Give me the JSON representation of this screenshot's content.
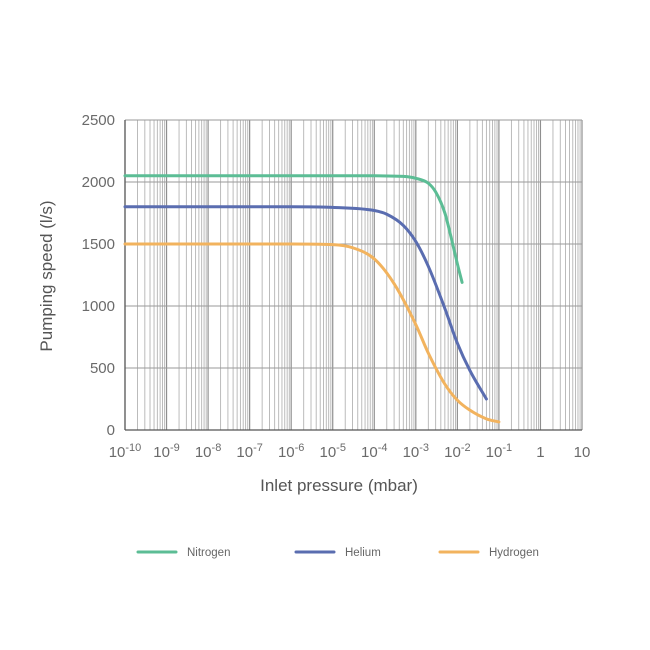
{
  "chart_data": {
    "type": "line",
    "title": "",
    "xlabel": "Inlet pressure (mbar)",
    "ylabel": "Pumping speed (l/s)",
    "x_scale": "log",
    "xlim": [
      1e-10,
      10
    ],
    "ylim": [
      0,
      2500
    ],
    "grid": true,
    "legend_position": "bottom",
    "x_ticks": [
      {
        "base": "10",
        "exp": "-10"
      },
      {
        "base": "10",
        "exp": "-9"
      },
      {
        "base": "10",
        "exp": "-8"
      },
      {
        "base": "10",
        "exp": "-7"
      },
      {
        "base": "10",
        "exp": "-6"
      },
      {
        "base": "10",
        "exp": "-5"
      },
      {
        "base": "10",
        "exp": "-4"
      },
      {
        "base": "10",
        "exp": "-3"
      },
      {
        "base": "10",
        "exp": "-2"
      },
      {
        "base": "10",
        "exp": "-1"
      },
      {
        "base": "1",
        "exp": ""
      },
      {
        "base": "10",
        "exp": ""
      }
    ],
    "y_ticks": [
      "0",
      "500",
      "1000",
      "1500",
      "2000",
      "2500"
    ],
    "series": [
      {
        "name": "Nitrogen",
        "color": "#5cbd95",
        "x": [
          1e-10,
          1e-08,
          1e-06,
          0.0001,
          0.0005,
          0.001,
          0.002,
          0.003,
          0.005,
          0.007,
          0.01,
          0.013
        ],
        "y": [
          2050,
          2050,
          2050,
          2050,
          2045,
          2030,
          1990,
          1920,
          1750,
          1560,
          1340,
          1190
        ]
      },
      {
        "name": "Helium",
        "color": "#5a6db0",
        "x": [
          1e-10,
          1e-08,
          1e-06,
          1e-05,
          0.0001,
          0.0002,
          0.0005,
          0.001,
          0.002,
          0.005,
          0.01,
          0.02,
          0.05
        ],
        "y": [
          1800,
          1800,
          1800,
          1795,
          1770,
          1740,
          1650,
          1520,
          1320,
          980,
          700,
          480,
          250
        ]
      },
      {
        "name": "Hydrogen",
        "color": "#f2b35e",
        "x": [
          1e-10,
          1e-08,
          1e-06,
          1e-05,
          3e-05,
          0.0001,
          0.0003,
          0.001,
          0.002,
          0.005,
          0.01,
          0.02,
          0.05,
          0.1
        ],
        "y": [
          1500,
          1500,
          1500,
          1495,
          1470,
          1380,
          1180,
          850,
          620,
          370,
          240,
          160,
          90,
          65
        ]
      }
    ]
  }
}
